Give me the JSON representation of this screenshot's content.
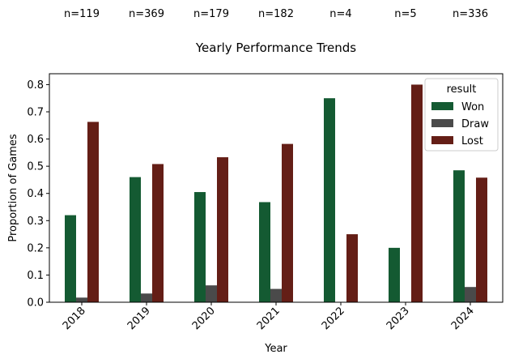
{
  "chart_data": {
    "type": "bar",
    "title": "Yearly Performance Trends",
    "xlabel": "Year",
    "ylabel": "Proportion of Games",
    "ylim": [
      0,
      0.84
    ],
    "yticks": [
      "0.0",
      "0.1",
      "0.2",
      "0.3",
      "0.4",
      "0.5",
      "0.6",
      "0.7",
      "0.8"
    ],
    "categories": [
      "2018",
      "2019",
      "2020",
      "2021",
      "2022",
      "2023",
      "2024"
    ],
    "counts": [
      "n=119",
      "n=369",
      "n=179",
      "n=182",
      "n=4",
      "n=5",
      "n=336"
    ],
    "legend": {
      "title": "result",
      "position": "upper-right"
    },
    "grid": false,
    "series": [
      {
        "name": "Won",
        "color": "#145a32",
        "values": [
          0.32,
          0.46,
          0.405,
          0.368,
          0.75,
          0.2,
          0.485
        ]
      },
      {
        "name": "Draw",
        "color": "#4a4a4a",
        "values": [
          0.017,
          0.032,
          0.062,
          0.049,
          0.0,
          0.0,
          0.056
        ]
      },
      {
        "name": "Lost",
        "color": "#641e16",
        "values": [
          0.663,
          0.508,
          0.533,
          0.582,
          0.25,
          0.8,
          0.458
        ]
      }
    ]
  }
}
